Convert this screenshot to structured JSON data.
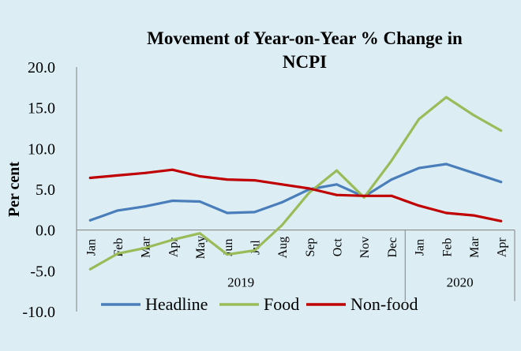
{
  "chart_data": {
    "type": "line",
    "title_line1": "Movement of Year-on-Year % Change in",
    "title_line2": "NCPI",
    "ylabel": "Per cent",
    "xlabel": "",
    "ylim": [
      -10,
      20
    ],
    "yticks": [
      "20.0",
      "15.0",
      "10.0",
      "5.0",
      "0.0",
      "-5.0",
      "-10.0"
    ],
    "ytick_values": [
      20,
      15,
      10,
      5,
      0,
      -5,
      -10
    ],
    "categories": [
      "Jan",
      "Feb",
      "Mar",
      "Apr",
      "May",
      "Jun",
      "Jul",
      "Aug",
      "Sep",
      "Oct",
      "Nov",
      "Dec",
      "Jan",
      "Feb",
      "Mar",
      "Apr"
    ],
    "year_groups": [
      {
        "label": "2019",
        "start": 0,
        "end": 11
      },
      {
        "label": "2020",
        "start": 12,
        "end": 15
      }
    ],
    "grid": false,
    "legend_position": "bottom",
    "series": [
      {
        "name": "Headline",
        "color": "#4a7ebb",
        "values": [
          1.2,
          2.4,
          2.9,
          3.6,
          3.5,
          2.1,
          2.2,
          3.4,
          5.0,
          5.6,
          4.1,
          6.2,
          7.6,
          8.1,
          7.0,
          5.9
        ]
      },
      {
        "name": "Food",
        "color": "#9bbb59",
        "values": [
          -4.8,
          -2.9,
          -2.2,
          -1.2,
          -0.4,
          -3.0,
          -2.5,
          0.6,
          4.6,
          7.3,
          4.0,
          8.5,
          13.6,
          16.3,
          14.1,
          12.2
        ]
      },
      {
        "name": "Non-food",
        "color": "#c00000",
        "values": [
          6.4,
          6.7,
          7.0,
          7.4,
          6.6,
          6.2,
          6.1,
          5.6,
          5.1,
          4.3,
          4.2,
          4.2,
          3.0,
          2.1,
          1.8,
          1.1
        ]
      }
    ]
  }
}
